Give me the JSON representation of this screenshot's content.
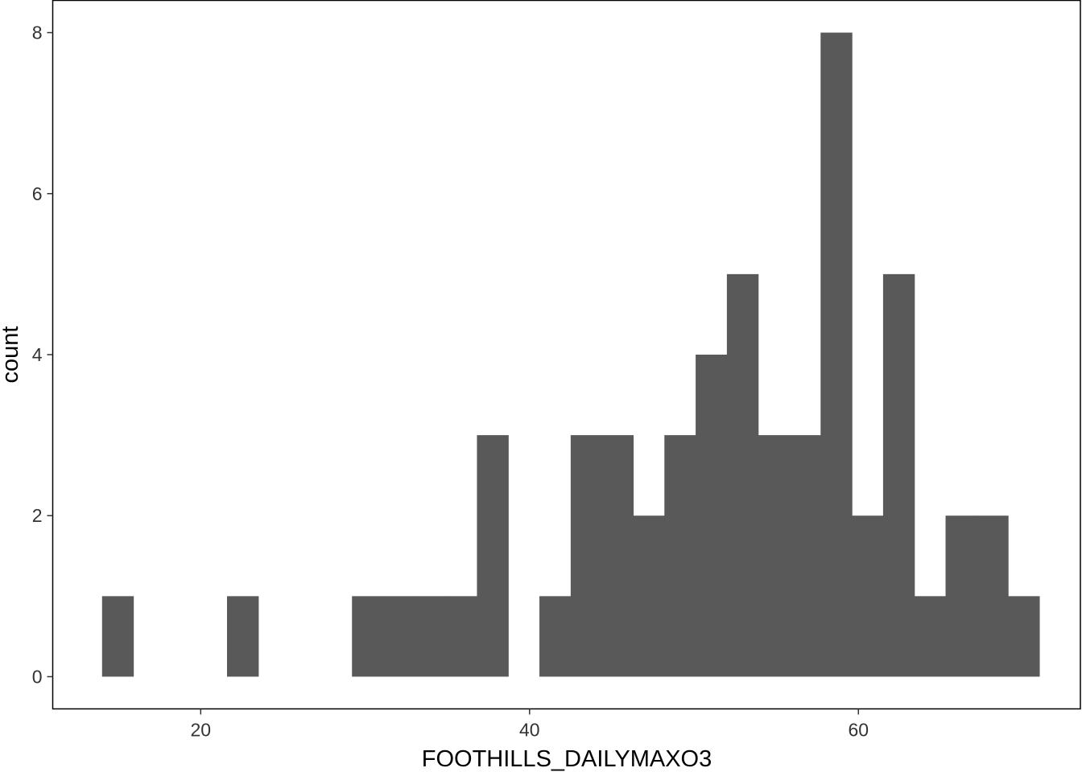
{
  "chart_data": {
    "type": "bar",
    "subtype": "histogram",
    "xlabel": "FOOTHILLS_DAILYMAXO3",
    "ylabel": "count",
    "xlim": [
      11,
      73.5
    ],
    "ylim": [
      -0.4,
      8.4
    ],
    "x_ticks": [
      20,
      40,
      60
    ],
    "y_ticks": [
      0,
      2,
      4,
      6,
      8
    ],
    "bin_width": 1.9,
    "bins": [
      {
        "x0": 14.0,
        "x1": 15.9,
        "count": 1
      },
      {
        "x0": 15.9,
        "x1": 17.8,
        "count": 0
      },
      {
        "x0": 17.8,
        "x1": 19.7,
        "count": 0
      },
      {
        "x0": 19.7,
        "x1": 21.6,
        "count": 0
      },
      {
        "x0": 21.6,
        "x1": 23.5,
        "count": 1
      },
      {
        "x0": 23.5,
        "x1": 25.4,
        "count": 0
      },
      {
        "x0": 25.4,
        "x1": 27.3,
        "count": 0
      },
      {
        "x0": 27.3,
        "x1": 29.2,
        "count": 0
      },
      {
        "x0": 29.2,
        "x1": 31.1,
        "count": 1
      },
      {
        "x0": 31.1,
        "x1": 33.0,
        "count": 1
      },
      {
        "x0": 33.0,
        "x1": 34.9,
        "count": 1
      },
      {
        "x0": 34.9,
        "x1": 36.8,
        "count": 1
      },
      {
        "x0": 36.8,
        "x1": 38.7,
        "count": 3
      },
      {
        "x0": 38.7,
        "x1": 40.6,
        "count": 0
      },
      {
        "x0": 40.6,
        "x1": 42.5,
        "count": 1
      },
      {
        "x0": 42.5,
        "x1": 44.4,
        "count": 3
      },
      {
        "x0": 44.4,
        "x1": 46.3,
        "count": 3
      },
      {
        "x0": 46.3,
        "x1": 48.2,
        "count": 2
      },
      {
        "x0": 48.2,
        "x1": 50.1,
        "count": 3
      },
      {
        "x0": 50.1,
        "x1": 52.0,
        "count": 4
      },
      {
        "x0": 52.0,
        "x1": 53.9,
        "count": 5
      },
      {
        "x0": 53.9,
        "x1": 55.8,
        "count": 3
      },
      {
        "x0": 55.8,
        "x1": 57.7,
        "count": 3
      },
      {
        "x0": 57.7,
        "x1": 59.6,
        "count": 8
      },
      {
        "x0": 59.6,
        "x1": 61.5,
        "count": 2
      },
      {
        "x0": 61.5,
        "x1": 63.4,
        "count": 5
      },
      {
        "x0": 63.4,
        "x1": 65.3,
        "count": 1
      },
      {
        "x0": 65.3,
        "x1": 67.2,
        "count": 2
      },
      {
        "x0": 67.2,
        "x1": 69.1,
        "count": 2
      },
      {
        "x0": 69.1,
        "x1": 71.0,
        "count": 1
      }
    ],
    "grid": false,
    "legend": "none",
    "colors": {
      "bar_fill": "#595959",
      "panel_border": "#000000",
      "tick": "#333333",
      "background": "#ffffff"
    }
  }
}
